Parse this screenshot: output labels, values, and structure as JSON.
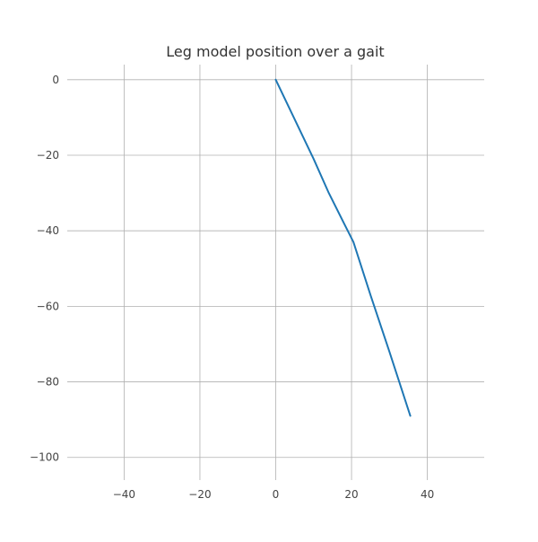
{
  "chart_data": {
    "type": "line",
    "title": "Leg model position over a gait",
    "xlabel": "",
    "ylabel": "",
    "xlim": [
      -55,
      55
    ],
    "ylim": [
      -106,
      4
    ],
    "xticks": [
      -40,
      -20,
      0,
      20,
      40
    ],
    "yticks": [
      0,
      -20,
      -40,
      -60,
      -80,
      -100
    ],
    "xtick_labels": [
      "−40",
      "−20",
      "0",
      "20",
      "40"
    ],
    "ytick_labels": [
      "0",
      "−20",
      "−40",
      "−60",
      "−80",
      "−100"
    ],
    "grid": true,
    "aspect": "equal",
    "series": [
      {
        "color": "#1f77b4",
        "x": [
          0,
          10,
          14,
          18,
          20.5,
          25,
          30,
          35.5
        ],
        "y": [
          0,
          -21,
          -30,
          -38,
          -43,
          -57,
          -72,
          -89
        ]
      }
    ]
  }
}
